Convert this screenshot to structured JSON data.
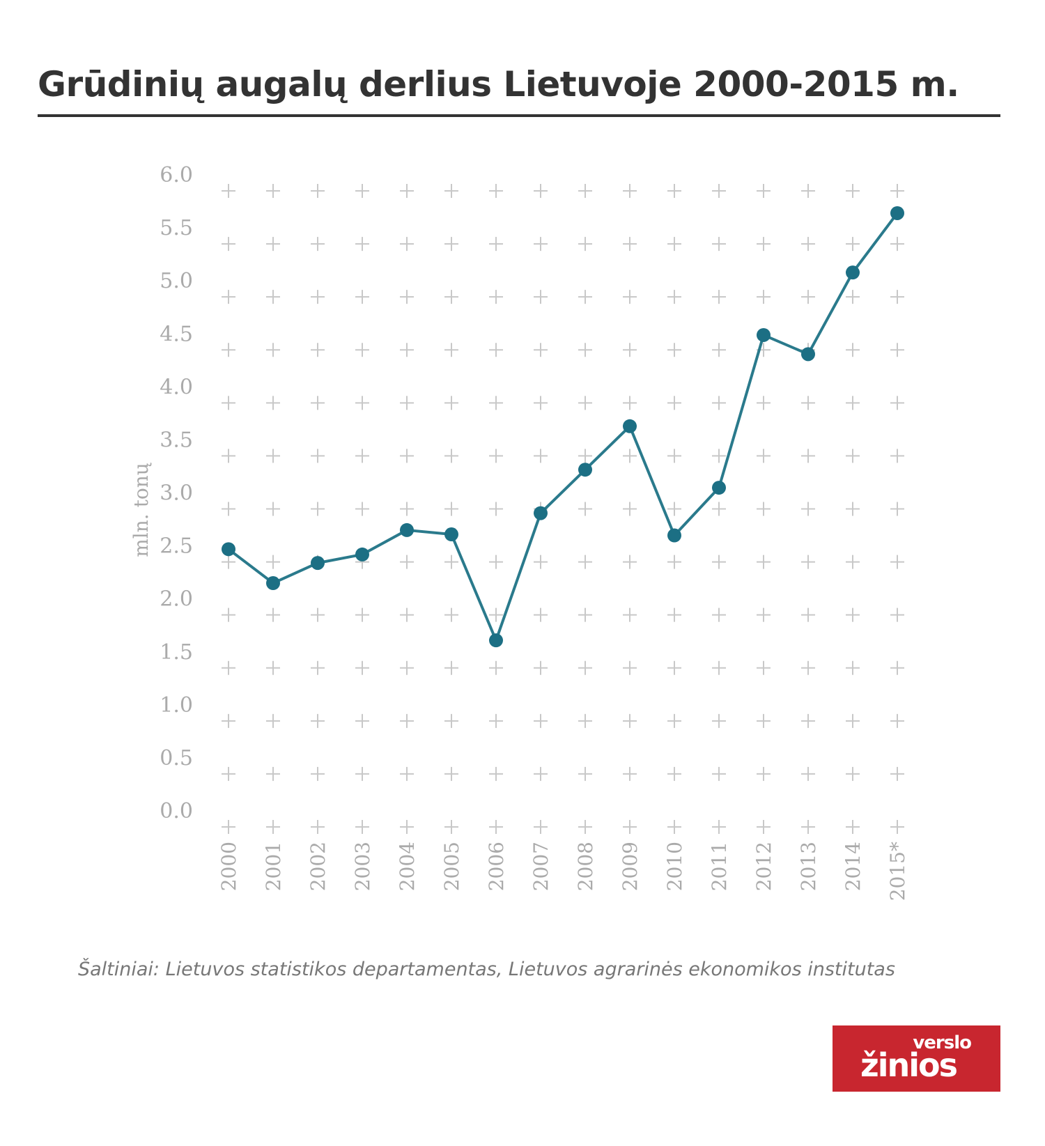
{
  "title": "Grūdinių augalų derlius Lietuvoje 2000-2015 m.",
  "source": "Šaltiniai: Lietuvos statistikos departamentas, Lietuvos agrarinės ekonomikos institutas",
  "logo": {
    "line1": "versl",
    "line1_accent": "o",
    "line2": "žinios"
  },
  "colors": {
    "line": "#2a7a8c",
    "marker": "#1c6f84",
    "grid_cross": "#c8c8c8",
    "axis_text": "#aaaaaa",
    "title": "#333333",
    "logo_bg": "#c8262f"
  },
  "chart_data": {
    "type": "line",
    "ylabel": "mln. tonų",
    "ylim": [
      0,
      6
    ],
    "yticks": [
      "0.0",
      "0.5",
      "1.0",
      "1.5",
      "2.0",
      "2.5",
      "3.0",
      "3.5",
      "4.0",
      "4.5",
      "5.0",
      "5.5",
      "6.0"
    ],
    "categories": [
      "2000",
      "2001",
      "2002",
      "2003",
      "2004",
      "2005",
      "2006",
      "2007",
      "2008",
      "2009",
      "2010",
      "2011",
      "2012",
      "2013",
      "2014",
      "2015*"
    ],
    "values": [
      2.62,
      2.3,
      2.49,
      2.57,
      2.8,
      2.76,
      1.76,
      2.96,
      3.37,
      3.78,
      2.75,
      3.2,
      4.64,
      4.46,
      5.23,
      5.79
    ],
    "grid": "cross markers",
    "legend": "none"
  }
}
